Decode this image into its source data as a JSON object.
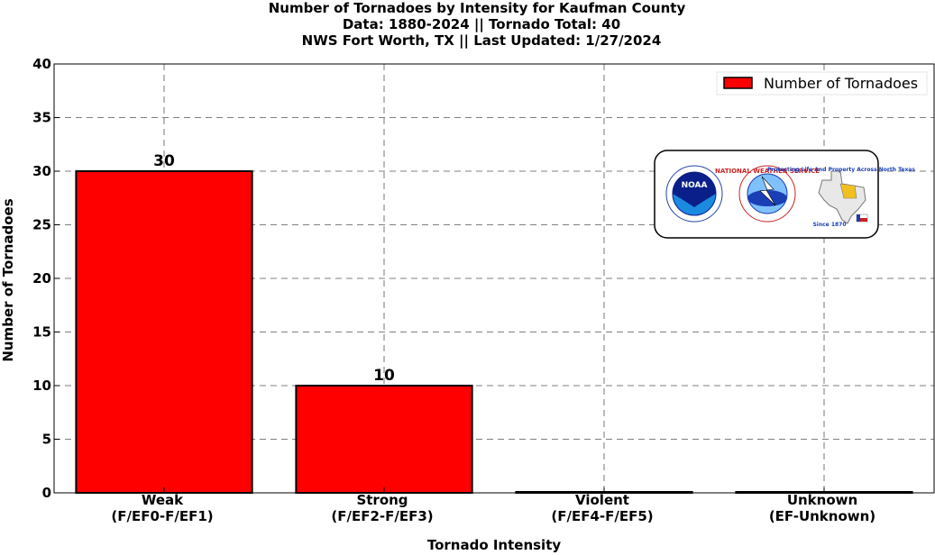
{
  "chart_data": {
    "type": "bar",
    "title": [
      "Number of Tornadoes by Intensity for Kaufman County",
      "Data: 1880-2024 || Tornado Total: 40",
      "NWS Fort Worth, TX || Last Updated: 1/27/2024"
    ],
    "categories": [
      [
        "Weak",
        "(F/EF0-F/EF1)"
      ],
      [
        "Strong",
        "(F/EF2-F/EF3)"
      ],
      [
        "Violent",
        "(F/EF4-F/EF5)"
      ],
      [
        "Unknown",
        "(EF-Unknown)"
      ]
    ],
    "series": [
      {
        "name": "Number of Tornadoes",
        "values": [
          30,
          10,
          0,
          0
        ],
        "color": "#ff0000"
      }
    ],
    "data_labels": [
      "30",
      "10",
      "",
      ""
    ],
    "xlabel": "Tornado Intensity",
    "ylabel": "Number of Tornadoes",
    "ylim": [
      0,
      40
    ],
    "yticks": [
      0,
      5,
      10,
      15,
      20,
      25,
      30,
      35,
      40
    ],
    "grid": true,
    "legend_position": "top-right"
  },
  "logos": {
    "noaa": "NOAA",
    "nws": "NATIONAL WEATHER SERVICE",
    "wfo_text": "Protecting Life And Property Across North Texas",
    "wfo_since": "Since 1870"
  }
}
